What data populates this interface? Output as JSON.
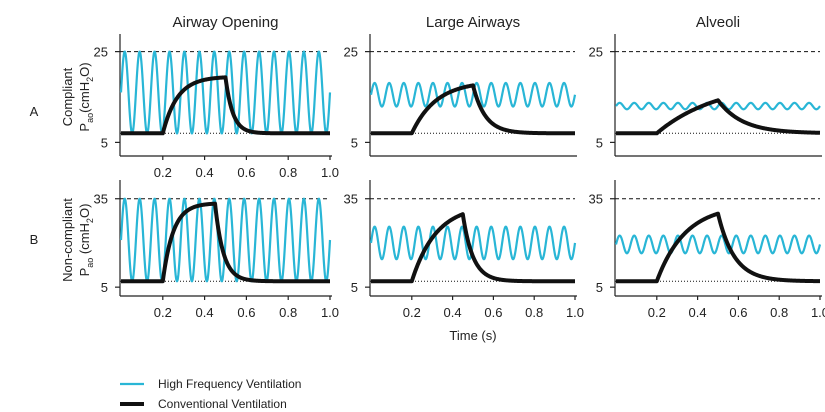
{
  "chart_data": [
    {
      "type": "line",
      "panel": "A1",
      "title": "Airway Opening",
      "row_label": "A",
      "ylabel": [
        "Compliant",
        "P",
        "ao",
        "(cmH",
        "2",
        "O)"
      ],
      "yticks": [
        "25",
        "5"
      ],
      "xticks": [
        "0.2",
        "0.4",
        "0.6",
        "0.8",
        "1.0"
      ],
      "xlim": [
        0,
        1.0
      ],
      "ylim": [
        2,
        28
      ],
      "ceiling": 25,
      "baseline": 7,
      "hfv": {
        "mean": 16,
        "amplitude": 9,
        "frequency_hz": 14
      },
      "conventional": {
        "baseline": 7,
        "peak": 19.5,
        "onset": 0.2,
        "end_inspiration": 0.5,
        "rise_tau": 0.07,
        "fall_tau": 0.035
      }
    },
    {
      "type": "line",
      "panel": "A2",
      "title": "Large Airways",
      "row_label": "",
      "ylabel": [],
      "yticks": [
        "25",
        "5"
      ],
      "xticks": [],
      "xlim": [
        0,
        1.0
      ],
      "ylim": [
        2,
        28
      ],
      "ceiling": 25,
      "baseline": 7,
      "hfv": {
        "mean": 15.5,
        "amplitude": 2.6,
        "frequency_hz": 14
      },
      "conventional": {
        "baseline": 7,
        "peak": 18.5,
        "onset": 0.2,
        "end_inspiration": 0.5,
        "rise_tau": 0.12,
        "fall_tau": 0.06
      }
    },
    {
      "type": "line",
      "panel": "A3",
      "title": "Alveoli",
      "row_label": "",
      "ylabel": [],
      "yticks": [
        "25",
        "5"
      ],
      "xticks": [],
      "xlim": [
        0,
        1.0
      ],
      "ylim": [
        2,
        28
      ],
      "ceiling": 25,
      "baseline": 7,
      "hfv": {
        "mean": 13,
        "amplitude": 0.7,
        "frequency_hz": 14
      },
      "conventional": {
        "baseline": 7,
        "peak": 18.5,
        "onset": 0.2,
        "end_inspiration": 0.5,
        "rise_tau": 0.3,
        "fall_tau": 0.12
      }
    },
    {
      "type": "line",
      "panel": "B1",
      "title": "",
      "row_label": "B",
      "ylabel": [
        "Non-compliant",
        "P",
        "ao",
        " (cmH",
        "2",
        "O)"
      ],
      "yticks": [
        "35",
        "5"
      ],
      "xticks": [
        "0.2",
        "0.4",
        "0.6",
        "0.8",
        "1.0"
      ],
      "xlim": [
        0,
        1.0
      ],
      "ylim": [
        2,
        40
      ],
      "ceiling": 35,
      "baseline": 7,
      "hfv": {
        "mean": 21,
        "amplitude": 14,
        "frequency_hz": 14
      },
      "conventional": {
        "baseline": 7,
        "peak": 33.5,
        "onset": 0.2,
        "end_inspiration": 0.45,
        "rise_tau": 0.05,
        "fall_tau": 0.04
      }
    },
    {
      "type": "line",
      "panel": "B2",
      "title": "",
      "row_label": "",
      "ylabel": [],
      "yticks": [
        "35",
        "5"
      ],
      "xticks": [
        "0.2",
        "0.4",
        "0.6",
        "0.8",
        "1.0"
      ],
      "xlabel": "Time (s)",
      "xlim": [
        0,
        1.0
      ],
      "ylim": [
        2,
        40
      ],
      "ceiling": 35,
      "baseline": 7,
      "hfv": {
        "mean": 20,
        "amplitude": 5.5,
        "frequency_hz": 14
      },
      "conventional": {
        "baseline": 7,
        "peak": 33,
        "onset": 0.2,
        "end_inspiration": 0.45,
        "rise_tau": 0.12,
        "fall_tau": 0.05
      }
    },
    {
      "type": "line",
      "panel": "B3",
      "title": "",
      "row_label": "",
      "ylabel": [],
      "yticks": [
        "35",
        "5"
      ],
      "xticks": [
        "0.2",
        "0.4",
        "0.6",
        "0.8",
        "1.0"
      ],
      "xlim": [
        0,
        1.0
      ],
      "ylim": [
        2,
        40
      ],
      "ceiling": 35,
      "baseline": 7,
      "hfv": {
        "mean": 19.5,
        "amplitude": 3,
        "frequency_hz": 14
      },
      "conventional": {
        "baseline": 7,
        "peak": 33,
        "onset": 0.2,
        "end_inspiration": 0.5,
        "rise_tau": 0.14,
        "fall_tau": 0.08
      }
    }
  ],
  "legend": {
    "items": [
      {
        "label": "High Frequency Ventilation",
        "color": "#29b6d6"
      },
      {
        "label": "Conventional Ventilation",
        "color": "#111111"
      }
    ]
  },
  "colors": {
    "hfv": "#29b6d6",
    "conventional": "#111111",
    "axis": "#222222"
  }
}
